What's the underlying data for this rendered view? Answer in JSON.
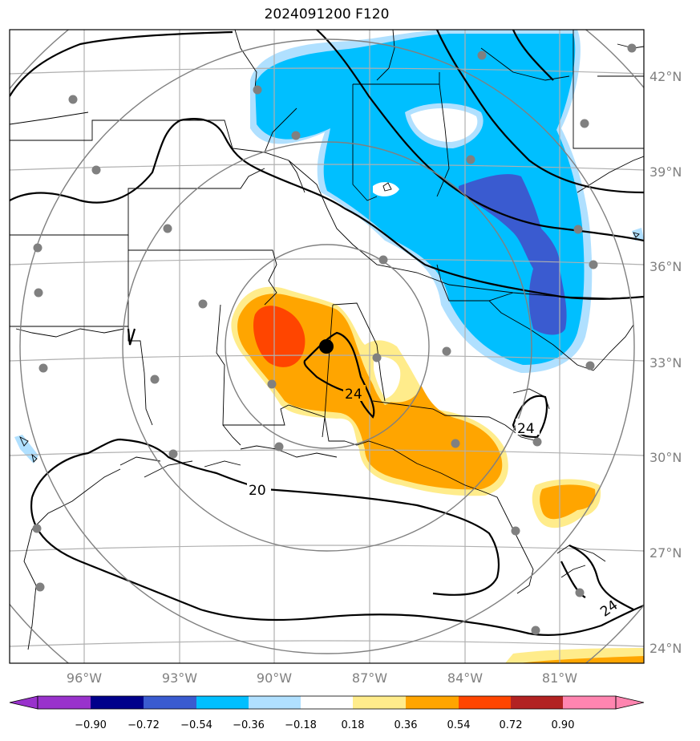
{
  "title": "2024091200 F120",
  "lon_ticks": [
    "96°W",
    "93°W",
    "90°W",
    "87°W",
    "84°W",
    "81°W"
  ],
  "lat_ticks": [
    "42°N",
    "39°N",
    "36°N",
    "33°N",
    "30°N",
    "27°N",
    "24°N"
  ],
  "colorbar": {
    "labels": [
      "−0.90",
      "−0.72",
      "−0.54",
      "−0.36",
      "−0.18",
      "0.18",
      "0.36",
      "0.54",
      "0.72",
      "0.90"
    ],
    "colors": [
      "#9932cc",
      "#00008b",
      "#3a5bd0",
      "#00bfff",
      "#b0e0ff",
      "#ffffff",
      "#ffec8b",
      "#ffa500",
      "#ff4500",
      "#b22222",
      "#ff85b0"
    ]
  },
  "contour_labels": [
    "24",
    "24",
    "20",
    "24"
  ],
  "colors": {
    "gridline": "#b0b0b0",
    "range_ring": "#808080",
    "station": "#808080",
    "center_marker": "#000000"
  }
}
